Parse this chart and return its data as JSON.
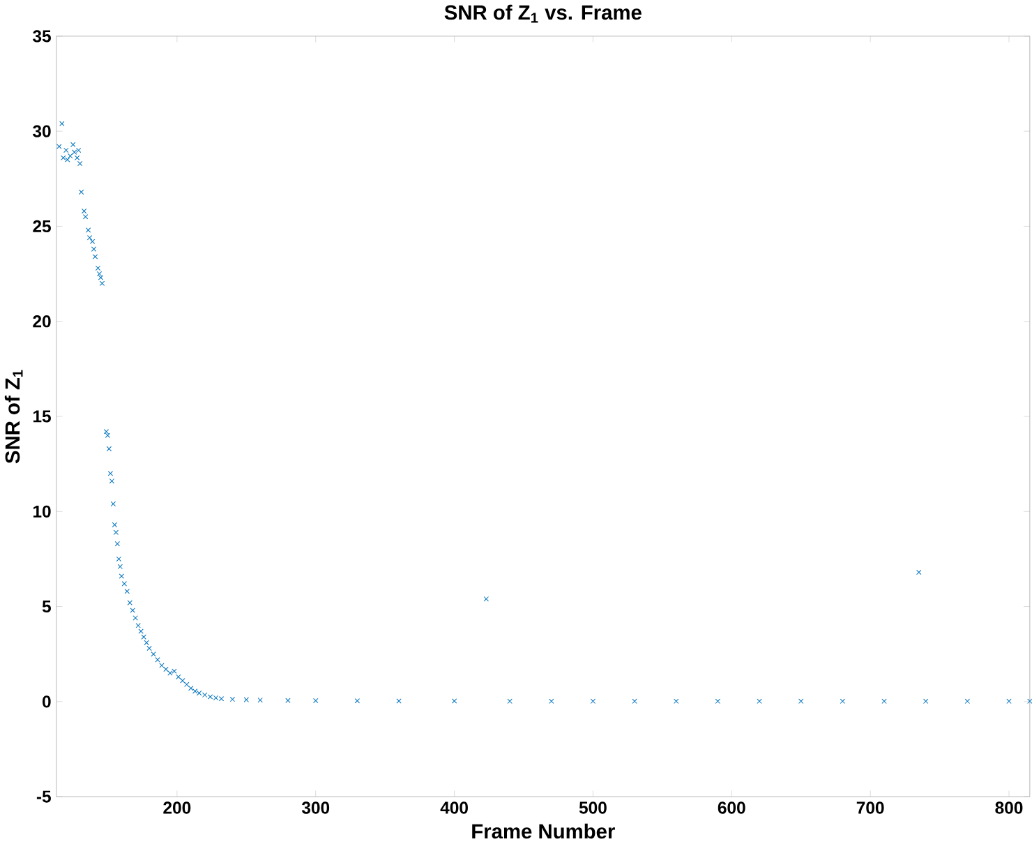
{
  "chart_data": {
    "type": "scatter",
    "title": "SNR of Z$_{1}$ vs. Frame",
    "xlabel": "Frame Number",
    "ylabel": "SNR of Z$_{1}$",
    "marker": "cross",
    "grid": false,
    "xlim": [
      113,
      815
    ],
    "ylim": [
      -5,
      35
    ],
    "xticks": [
      200,
      300,
      400,
      500,
      600,
      700,
      800
    ],
    "yticks": [
      -5,
      0,
      5,
      10,
      15,
      20,
      25,
      30,
      35
    ],
    "series": [
      {
        "color": "#0072bd",
        "x": [
          115,
          117,
          118,
          120,
          121,
          123,
          125,
          126,
          128,
          129,
          130,
          131,
          133,
          134,
          136,
          137,
          139,
          140,
          141,
          143,
          144,
          145,
          146,
          149,
          150,
          151,
          152,
          153,
          154,
          155,
          156,
          157,
          158,
          159,
          160,
          162,
          164,
          166,
          168,
          170,
          172,
          174,
          176,
          178,
          180,
          183,
          186,
          189,
          192,
          195,
          198,
          201,
          204,
          207,
          210,
          213,
          216,
          220,
          224,
          228,
          232,
          240,
          250,
          260,
          280,
          300,
          330,
          360,
          400,
          423,
          440,
          470,
          500,
          530,
          560,
          590,
          620,
          650,
          680,
          710,
          735,
          740,
          770,
          800,
          815
        ],
        "values": [
          29.2,
          30.4,
          28.6,
          29.0,
          28.5,
          28.7,
          29.3,
          28.9,
          28.6,
          29.0,
          28.3,
          26.8,
          25.8,
          25.5,
          24.8,
          24.4,
          24.2,
          23.8,
          23.4,
          22.8,
          22.5,
          22.3,
          22.0,
          14.2,
          14.0,
          13.3,
          12.0,
          11.6,
          10.4,
          9.3,
          8.9,
          8.3,
          7.5,
          7.1,
          6.6,
          6.2,
          5.8,
          5.2,
          4.8,
          4.4,
          4.0,
          3.7,
          3.4,
          3.1,
          2.8,
          2.5,
          2.2,
          1.9,
          1.7,
          1.5,
          1.6,
          1.3,
          1.1,
          0.9,
          0.7,
          0.55,
          0.45,
          0.35,
          0.25,
          0.2,
          0.15,
          0.12,
          0.1,
          0.08,
          0.06,
          0.05,
          0.04,
          0.03,
          0.03,
          5.4,
          0.02,
          0.02,
          0.02,
          0.02,
          0.02,
          0.02,
          0.02,
          0.02,
          0.02,
          0.02,
          6.8,
          0.02,
          0.02,
          0.02,
          0.02
        ]
      }
    ]
  }
}
